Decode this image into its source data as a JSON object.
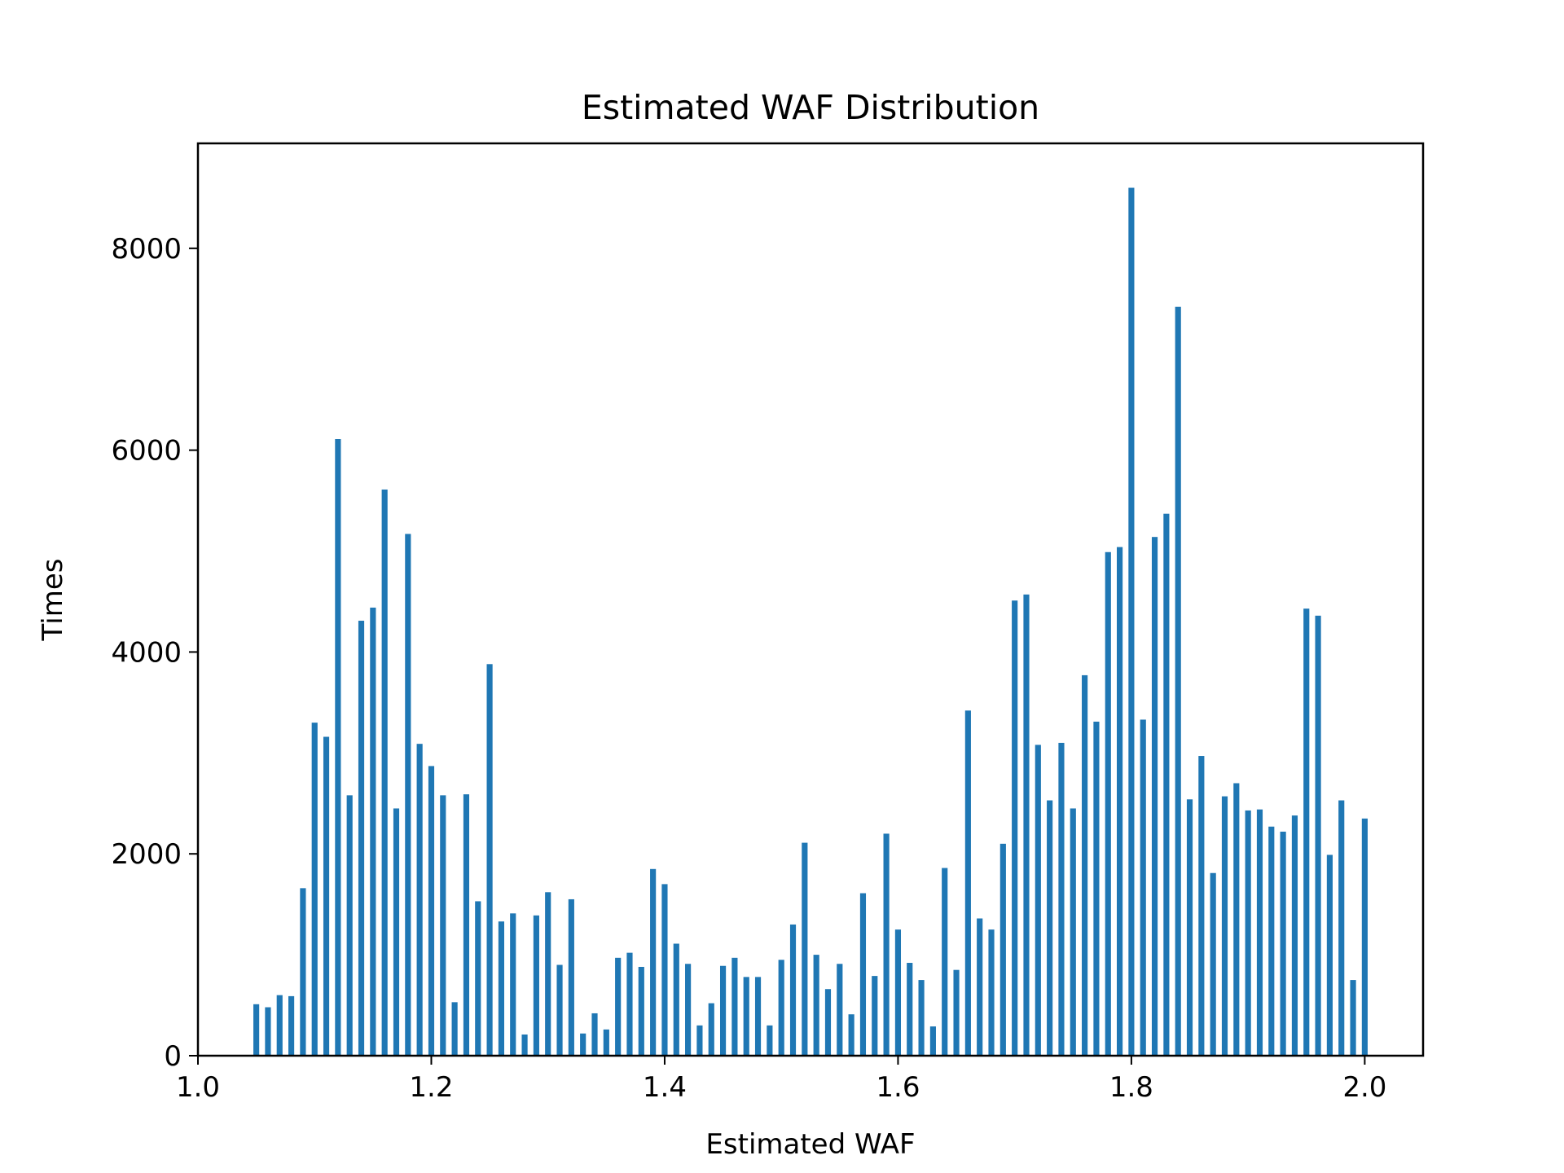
{
  "chart_data": {
    "type": "bar",
    "title": "Estimated WAF Distribution",
    "xlabel": "Estimated WAF",
    "ylabel": "Times",
    "xlim": [
      1.0,
      2.05
    ],
    "ylim": [
      0,
      9040
    ],
    "xticks": [
      1.0,
      1.2,
      1.4,
      1.6,
      1.8,
      2.0
    ],
    "xtick_labels": [
      "1.0",
      "1.2",
      "1.4",
      "1.6",
      "1.8",
      "2.0"
    ],
    "yticks": [
      0,
      2000,
      4000,
      6000,
      8000
    ],
    "ytick_labels": [
      "0",
      "2000",
      "4000",
      "6000",
      "8000"
    ],
    "grid": false,
    "bar_color": "#1f77b4",
    "x": [
      1.05,
      1.06,
      1.07,
      1.08,
      1.09,
      1.1,
      1.11,
      1.12,
      1.13,
      1.14,
      1.15,
      1.16,
      1.17,
      1.18,
      1.19,
      1.2,
      1.21,
      1.22,
      1.23,
      1.24,
      1.25,
      1.26,
      1.27,
      1.28,
      1.29,
      1.3,
      1.31,
      1.32,
      1.33,
      1.34,
      1.35,
      1.36,
      1.37,
      1.38,
      1.39,
      1.4,
      1.41,
      1.42,
      1.43,
      1.44,
      1.45,
      1.46,
      1.47,
      1.48,
      1.49,
      1.5,
      1.51,
      1.52,
      1.53,
      1.54,
      1.55,
      1.56,
      1.57,
      1.58,
      1.59,
      1.6,
      1.61,
      1.62,
      1.63,
      1.64,
      1.65,
      1.66,
      1.67,
      1.68,
      1.69,
      1.7,
      1.71,
      1.72,
      1.73,
      1.74,
      1.75,
      1.76,
      1.77,
      1.78,
      1.79,
      1.8,
      1.81,
      1.82,
      1.83,
      1.84,
      1.85,
      1.86,
      1.87,
      1.88,
      1.89,
      1.9,
      1.91,
      1.92,
      1.93,
      1.94,
      1.95,
      1.96,
      1.97,
      1.98,
      1.99,
      2.0
    ],
    "values": [
      510,
      480,
      600,
      590,
      1660,
      3300,
      3160,
      6110,
      2580,
      4310,
      4440,
      5610,
      2450,
      5170,
      3090,
      2870,
      2580,
      530,
      2590,
      1530,
      3880,
      1330,
      1410,
      210,
      1390,
      1620,
      900,
      1550,
      220,
      420,
      260,
      970,
      1020,
      880,
      1850,
      1700,
      1110,
      910,
      300,
      520,
      890,
      970,
      780,
      780,
      300,
      950,
      1300,
      2110,
      1000,
      660,
      910,
      410,
      1610,
      790,
      2200,
      1250,
      920,
      750,
      290,
      1860,
      850,
      3420,
      1360,
      1250,
      2100,
      4510,
      4570,
      3080,
      2530,
      3100,
      2450,
      3770,
      3310,
      4990,
      5040,
      8600,
      3330,
      5140,
      5370,
      7420,
      2540,
      2970,
      1810,
      2570,
      2700,
      2430,
      2440,
      2270,
      2220,
      2380,
      4430,
      4360,
      1990,
      2530,
      750,
      2350
    ]
  }
}
